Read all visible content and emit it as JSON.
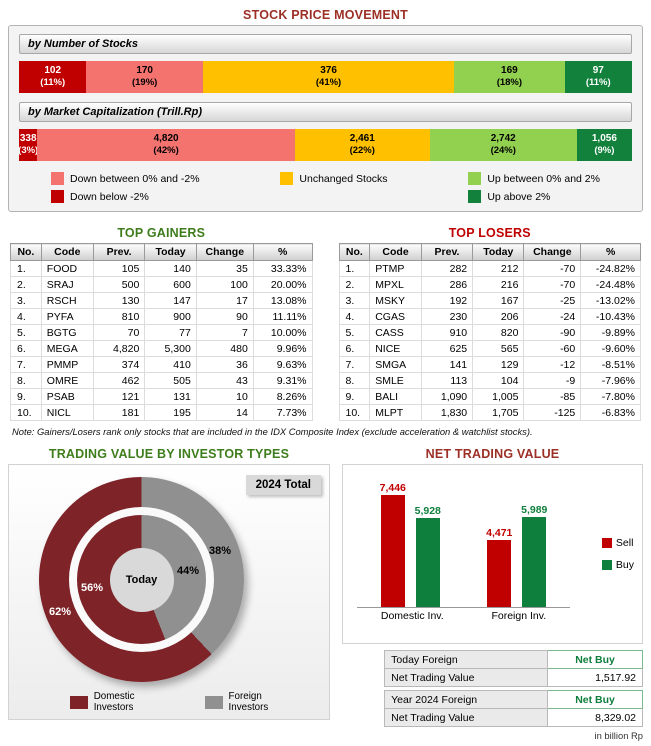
{
  "stock_price_movement": {
    "title": "STOCK PRICE MOVEMENT",
    "by_number_label": "by Number of Stocks",
    "by_cap_label": "by Market Capitalization (Trill.Rp)",
    "number_segments": [
      {
        "value": "102",
        "pct": 11,
        "pct_label": "(11%)",
        "color": "#C00000",
        "text_color": "#FFFFFF"
      },
      {
        "value": "170",
        "pct": 19,
        "pct_label": "(19%)",
        "color": "#F4736F",
        "text_color": "#000000"
      },
      {
        "value": "376",
        "pct": 41,
        "pct_label": "(41%)",
        "color": "#FFC000",
        "text_color": "#000000"
      },
      {
        "value": "169",
        "pct": 18,
        "pct_label": "(18%)",
        "color": "#92D050",
        "text_color": "#000000"
      },
      {
        "value": "97",
        "pct": 11,
        "pct_label": "(11%)",
        "color": "#12813C",
        "text_color": "#FFFFFF"
      }
    ],
    "cap_segments": [
      {
        "value": "338",
        "pct": 3,
        "pct_label": "(3%)",
        "color": "#C00000",
        "text_color": "#FFFFFF"
      },
      {
        "value": "4,820",
        "pct": 42,
        "pct_label": "(42%)",
        "color": "#F4736F",
        "text_color": "#000000"
      },
      {
        "value": "2,461",
        "pct": 22,
        "pct_label": "(22%)",
        "color": "#FFC000",
        "text_color": "#000000"
      },
      {
        "value": "2,742",
        "pct": 24,
        "pct_label": "(24%)",
        "color": "#92D050",
        "text_color": "#000000"
      },
      {
        "value": "1,056",
        "pct": 9,
        "pct_label": "(9%)",
        "color": "#12813C",
        "text_color": "#FFFFFF"
      }
    ],
    "legend_groups": [
      {
        "items": [
          {
            "label": "Down between 0% and -2%",
            "color": "#F4736F"
          },
          {
            "label": "Down below -2%",
            "color": "#C00000"
          }
        ]
      },
      {
        "items": [
          {
            "label": "Unchanged Stocks",
            "color": "#FFC000"
          }
        ]
      },
      {
        "items": [
          {
            "label": "Up between 0% and 2%",
            "color": "#92D050"
          },
          {
            "label": "Up above 2%",
            "color": "#12813C"
          }
        ]
      }
    ]
  },
  "note": "Note: Gainers/Losers rank only stocks that are included in the IDX Composite Index (exclude acceleration & watchlist stocks).",
  "trading_value": {
    "title": "TRADING VALUE BY INVESTOR TYPES",
    "outer_ring_label": "2024 Total",
    "center_label": "Today",
    "outer": {
      "domestic": 62,
      "foreign": 38
    },
    "inner": {
      "domestic": 56,
      "foreign": 44
    },
    "pct_labels": {
      "outer_foreign": "38%",
      "inner_foreign": "44%",
      "inner_domestic": "56%",
      "outer_domestic": "62%"
    },
    "colors": {
      "domestic": "#7E2328",
      "foreign": "#909090",
      "center": "#D9D9D9"
    },
    "legend": [
      {
        "label_line1": "Domestic",
        "label_line2": "Investors",
        "color": "#7E2328"
      },
      {
        "label_line1": "Foreign",
        "label_line2": "Investors",
        "color": "#909090"
      }
    ]
  },
  "net_trading": {
    "title": "NET TRADING VALUE",
    "groups": [
      {
        "label": "Domestic Inv.",
        "sell": 7446,
        "buy": 5928,
        "sell_label": "7,446",
        "buy_label": "5,928"
      },
      {
        "label": "Foreign Inv.",
        "sell": 4471,
        "buy": 5989,
        "sell_label": "4,471",
        "buy_label": "5,989"
      }
    ],
    "colors": {
      "sell": "#C00000",
      "buy": "#0E7F3C"
    },
    "legend": [
      {
        "label": "Sell",
        "color": "#C00000"
      },
      {
        "label": "Buy",
        "color": "#0E7F3C"
      }
    ],
    "summary_rows": [
      {
        "label": "Today Foreign",
        "value": "Net Buy"
      },
      {
        "label": "Net Trading Value",
        "value": "1,517.92"
      },
      {
        "label": "Year 2024 Foreign",
        "value": "Net Buy"
      },
      {
        "label": "Net Trading Value",
        "value": "8,329.02"
      }
    ],
    "unit": "in billion Rp"
  },
  "chart_data": [
    {
      "type": "bar",
      "subtype": "horizontal_stacked_100pct",
      "title": "by Number of Stocks",
      "categories": [
        "Down below -2%",
        "Down between 0% and -2%",
        "Unchanged Stocks",
        "Up between 0% and 2%",
        "Up above 2%"
      ],
      "values": [
        102,
        170,
        376,
        169,
        97
      ],
      "percent": [
        11,
        19,
        41,
        18,
        11
      ]
    },
    {
      "type": "bar",
      "subtype": "horizontal_stacked_100pct",
      "title": "by Market Capitalization (Trill.Rp)",
      "categories": [
        "Down below -2%",
        "Down between 0% and -2%",
        "Unchanged Stocks",
        "Up between 0% and 2%",
        "Up above 2%"
      ],
      "values": [
        338,
        4820,
        2461,
        2742,
        1056
      ],
      "percent": [
        3,
        42,
        22,
        24,
        9
      ]
    },
    {
      "type": "pie",
      "subtype": "double_donut",
      "title": "TRADING VALUE BY INVESTOR TYPES",
      "legend": [
        "Domestic Investors",
        "Foreign Investors"
      ],
      "rings": [
        {
          "name": "2024 Total",
          "values_pct": [
            62,
            38
          ]
        },
        {
          "name": "Today",
          "values_pct": [
            56,
            44
          ]
        }
      ],
      "legend_position": "bottom"
    },
    {
      "type": "bar",
      "subtype": "grouped_vertical",
      "title": "NET TRADING VALUE",
      "categories": [
        "Domestic Inv.",
        "Foreign Inv."
      ],
      "series": [
        {
          "name": "Sell",
          "values": [
            7446,
            4471
          ]
        },
        {
          "name": "Buy",
          "values": [
            5928,
            5989
          ]
        }
      ],
      "unit": "in billion Rp",
      "legend_position": "right",
      "annotations": {
        "today_foreign_net_trading_value": "1,517.92",
        "today_foreign_direction": "Net Buy",
        "year_2024_foreign_net_trading_value": "8,329.02",
        "year_2024_foreign_direction": "Net Buy"
      }
    },
    {
      "type": "table",
      "title": "TOP GAINERS",
      "headers": [
        "No.",
        "Code",
        "Prev.",
        "Today",
        "Change",
        "%"
      ],
      "rows": [
        [
          "1.",
          "FOOD",
          "105",
          "140",
          "35",
          "33.33%"
        ],
        [
          "2.",
          "SRAJ",
          "500",
          "600",
          "100",
          "20.00%"
        ],
        [
          "3.",
          "RSCH",
          "130",
          "147",
          "17",
          "13.08%"
        ],
        [
          "4.",
          "PYFA",
          "810",
          "900",
          "90",
          "11.11%"
        ],
        [
          "5.",
          "BGTG",
          "70",
          "77",
          "7",
          "10.00%"
        ],
        [
          "6.",
          "MEGA",
          "4,820",
          "5,300",
          "480",
          "9.96%"
        ],
        [
          "7.",
          "PMMP",
          "374",
          "410",
          "36",
          "9.63%"
        ],
        [
          "8.",
          "OMRE",
          "462",
          "505",
          "43",
          "9.31%"
        ],
        [
          "9.",
          "PSAB",
          "121",
          "131",
          "10",
          "8.26%"
        ],
        [
          "10.",
          "NICL",
          "181",
          "195",
          "14",
          "7.73%"
        ]
      ]
    },
    {
      "type": "table",
      "title": "TOP LOSERS",
      "headers": [
        "No.",
        "Code",
        "Prev.",
        "Today",
        "Change",
        "%"
      ],
      "rows": [
        [
          "1.",
          "PTMP",
          "282",
          "212",
          "-70",
          "-24.82%"
        ],
        [
          "2.",
          "MPXL",
          "286",
          "216",
          "-70",
          "-24.48%"
        ],
        [
          "3.",
          "MSKY",
          "192",
          "167",
          "-25",
          "-13.02%"
        ],
        [
          "4.",
          "CGAS",
          "230",
          "206",
          "-24",
          "-10.43%"
        ],
        [
          "5.",
          "CASS",
          "910",
          "820",
          "-90",
          "-9.89%"
        ],
        [
          "6.",
          "NICE",
          "625",
          "565",
          "-60",
          "-9.60%"
        ],
        [
          "7.",
          "SMGA",
          "141",
          "129",
          "-12",
          "-8.51%"
        ],
        [
          "8.",
          "SMLE",
          "113",
          "104",
          "-9",
          "-7.96%"
        ],
        [
          "9.",
          "BALI",
          "1,090",
          "1,005",
          "-85",
          "-7.80%"
        ],
        [
          "10.",
          "MLPT",
          "1,830",
          "1,705",
          "-125",
          "-6.83%"
        ]
      ]
    }
  ]
}
